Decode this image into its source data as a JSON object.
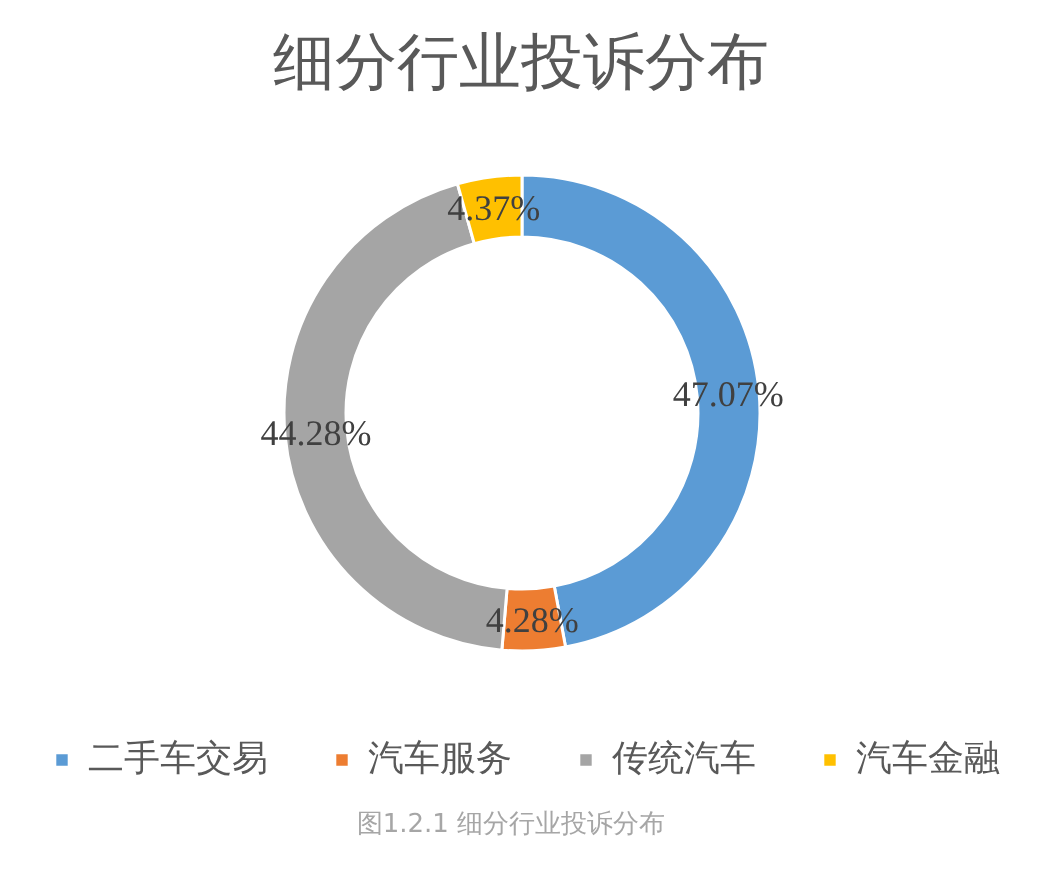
{
  "chart_data": {
    "type": "donut",
    "title": "细分行业投诉分布",
    "categories": [
      "二手车交易",
      "汽车服务",
      "传统汽车",
      "汽车金融"
    ],
    "values": [
      47.07,
      4.28,
      44.28,
      4.37
    ],
    "colors": [
      "#5b9bd5",
      "#ed7d31",
      "#a5a5a5",
      "#ffc000"
    ],
    "value_labels": [
      "47.07%",
      "4.28%",
      "44.28%",
      "4.37%"
    ],
    "legend": "bottom",
    "annotations": [
      "图1.2.1  细分行业投诉分布"
    ]
  }
}
